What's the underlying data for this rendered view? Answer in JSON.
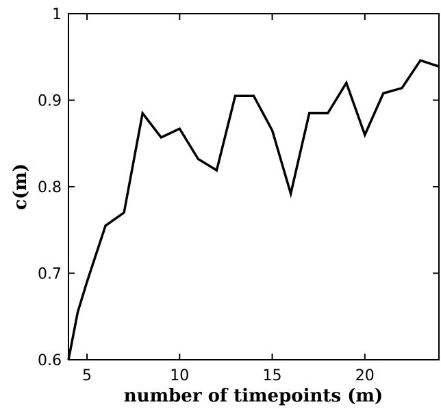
{
  "chart_data": {
    "type": "line",
    "title": "",
    "xlabel": "number of timepoints (m)",
    "ylabel": "c(m)",
    "xlim": [
      4,
      24
    ],
    "ylim": [
      0.6,
      1.0
    ],
    "x_ticks": [
      5,
      10,
      15,
      20
    ],
    "x_tick_labels": [
      "5",
      "10",
      "15",
      "20"
    ],
    "y_ticks": [
      0.6,
      0.7,
      0.8,
      0.9,
      1.0
    ],
    "y_tick_labels": [
      "0.6",
      "0.7",
      "0.8",
      "0.9",
      "1"
    ],
    "grid": false,
    "legend": "none",
    "line_color": "#000000",
    "series": [
      {
        "x": [
          4,
          4.5,
          5,
          6,
          7,
          8,
          9,
          10,
          11,
          12,
          13,
          14,
          15,
          16,
          17,
          18,
          19,
          20,
          21,
          22,
          23,
          24
        ],
        "values": [
          0.6,
          0.655,
          0.69,
          0.755,
          0.77,
          0.885,
          0.857,
          0.867,
          0.832,
          0.819,
          0.905,
          0.905,
          0.865,
          0.792,
          0.885,
          0.885,
          0.92,
          0.86,
          0.908,
          0.914,
          0.946,
          0.939
        ]
      }
    ]
  }
}
